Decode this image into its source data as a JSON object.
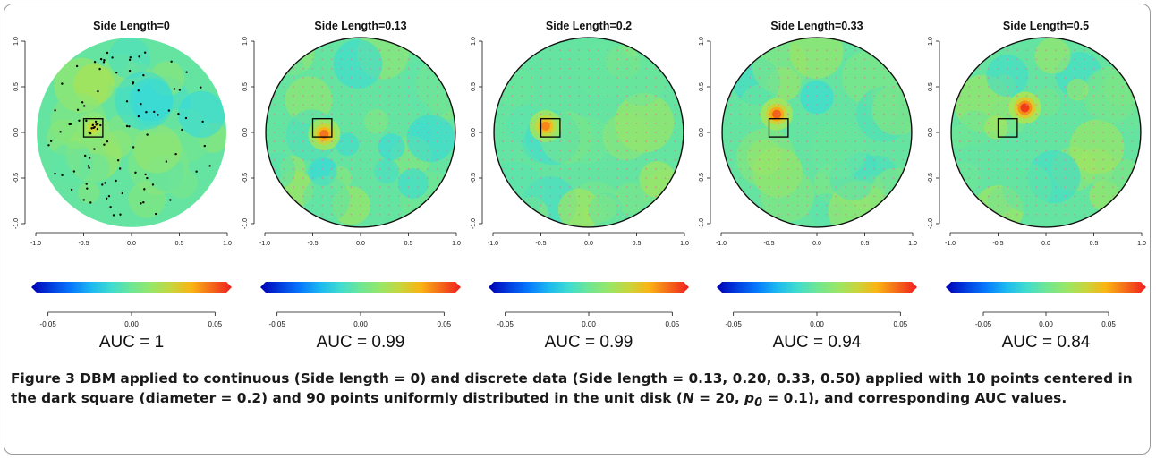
{
  "figure": {
    "label": "Figure 3",
    "caption_parts": [
      {
        "t": " DBM applied to continuous (Side length = 0) and discrete data (Side length = 0.13, 0.20, 0.33, 0.50) applied with 10 points centered in the dark square (diameter = 0.2) and 90 points uniformly distributed in the unit disk ("
      },
      {
        "t": "N",
        "i": true
      },
      {
        "t": " = 20, "
      },
      {
        "t": "p",
        "i": true
      },
      {
        "t": "0",
        "i": true,
        "sub": true
      },
      {
        "t": " = 0.1), and corresponding AUC values."
      }
    ]
  },
  "chart_data": [
    {
      "type": "heatmap",
      "title": "Side Length=0",
      "x_ticks": [
        "-1.0",
        "-0.5",
        "0.0",
        "0.5",
        "1.0"
      ],
      "y_ticks": [
        "1.0",
        "0.5",
        "0.0",
        "-0.5",
        "-1.0"
      ],
      "xlim": [
        -1,
        1
      ],
      "ylim": [
        -1,
        1
      ],
      "colorbar_ticks": [
        "-0.05",
        "0.00",
        "0.05"
      ],
      "colorbar_range": [
        -0.06,
        0.06
      ],
      "auc": "AUC = 1",
      "square": {
        "x": [
          -0.5,
          -0.3
        ],
        "y": [
          -0.05,
          0.15
        ]
      },
      "hotspot": {
        "x": -0.4,
        "y": 0.05,
        "level": 0.4
      },
      "show_points": true,
      "show_grid": false
    },
    {
      "type": "heatmap",
      "title": "Side Length=0.13",
      "x_ticks": [
        "-1.0",
        "-0.5",
        "0.0",
        "0.5",
        "1.0"
      ],
      "y_ticks": [
        "1.0",
        "0.5",
        "0.0",
        "-0.5",
        "-1.0"
      ],
      "xlim": [
        -1,
        1
      ],
      "ylim": [
        -1,
        1
      ],
      "colorbar_ticks": [
        "-0.05",
        "0.00",
        "0.05"
      ],
      "colorbar_range": [
        -0.06,
        0.06
      ],
      "auc": "AUC = 0.99",
      "square": {
        "x": [
          -0.5,
          -0.3
        ],
        "y": [
          -0.05,
          0.15
        ]
      },
      "hotspot": {
        "x": -0.38,
        "y": -0.02,
        "level": 0.75
      },
      "show_points": false,
      "show_grid": true
    },
    {
      "type": "heatmap",
      "title": "Side Length=0.2",
      "x_ticks": [
        "-1.0",
        "-0.5",
        "0.0",
        "0.5",
        "1.0"
      ],
      "y_ticks": [
        "1.0",
        "0.5",
        "0.0",
        "-0.5",
        "-1.0"
      ],
      "xlim": [
        -1,
        1
      ],
      "ylim": [
        -1,
        1
      ],
      "colorbar_ticks": [
        "-0.05",
        "0.00",
        "0.05"
      ],
      "colorbar_range": [
        -0.06,
        0.06
      ],
      "auc": "AUC = 0.99",
      "square": {
        "x": [
          -0.5,
          -0.3
        ],
        "y": [
          -0.05,
          0.15
        ]
      },
      "hotspot": {
        "x": -0.45,
        "y": 0.07,
        "level": 0.7
      },
      "show_points": false,
      "show_grid": true
    },
    {
      "type": "heatmap",
      "title": "Side Length=0.33",
      "x_ticks": [
        "-1.0",
        "-0.5",
        "0.0",
        "0.5",
        "1.0"
      ],
      "y_ticks": [
        "1.0",
        "0.5",
        "0.0",
        "-0.5",
        "-1.0"
      ],
      "xlim": [
        -1,
        1
      ],
      "ylim": [
        -1,
        1
      ],
      "colorbar_ticks": [
        "-0.05",
        "0.00",
        "0.05"
      ],
      "colorbar_range": [
        -0.06,
        0.06
      ],
      "auc": "AUC = 0.94",
      "square": {
        "x": [
          -0.5,
          -0.3
        ],
        "y": [
          -0.05,
          0.15
        ]
      },
      "hotspot": {
        "x": -0.42,
        "y": 0.2,
        "level": 0.8
      },
      "show_points": false,
      "show_grid": true
    },
    {
      "type": "heatmap",
      "title": "Side Length=0.5",
      "x_ticks": [
        "-1.0",
        "-0.5",
        "0.0",
        "0.5",
        "1.0"
      ],
      "y_ticks": [
        "1.0",
        "0.5",
        "0.0",
        "-0.5",
        "-1.0"
      ],
      "xlim": [
        -1,
        1
      ],
      "ylim": [
        -1,
        1
      ],
      "colorbar_ticks": [
        "-0.05",
        "0.00",
        "0.05"
      ],
      "colorbar_range": [
        -0.08,
        0.08
      ],
      "auc": "AUC = 0.84",
      "square": {
        "x": [
          -0.5,
          -0.3
        ],
        "y": [
          -0.05,
          0.15
        ]
      },
      "hotspot": {
        "x": -0.22,
        "y": 0.27,
        "level": 0.9
      },
      "show_points": false,
      "show_grid": true
    }
  ],
  "colors": {
    "text": "#1a1a1a",
    "frame": "#9a9a9a",
    "square": "#000000",
    "points": "#000000",
    "grid": "#e07a9a"
  }
}
